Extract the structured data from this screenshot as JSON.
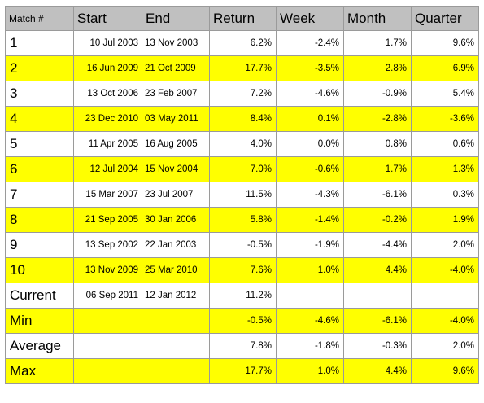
{
  "headers": [
    "Match #",
    "Start",
    "End",
    "Return",
    "Week",
    "Month",
    "Quarter"
  ],
  "rows": [
    {
      "label": "1",
      "start": "10 Jul 2003",
      "end": "13 Nov 2003",
      "ret": "6.2%",
      "week": "-2.4%",
      "month": "1.7%",
      "quarter": "9.6%",
      "highlight": false
    },
    {
      "label": "2",
      "start": "16 Jun 2009",
      "end": "21 Oct 2009",
      "ret": "17.7%",
      "week": "-3.5%",
      "month": "2.8%",
      "quarter": "6.9%",
      "highlight": true
    },
    {
      "label": "3",
      "start": "13 Oct 2006",
      "end": "23 Feb 2007",
      "ret": "7.2%",
      "week": "-4.6%",
      "month": "-0.9%",
      "quarter": "5.4%",
      "highlight": false
    },
    {
      "label": "4",
      "start": "23 Dec 2010",
      "end": "03 May 2011",
      "ret": "8.4%",
      "week": "0.1%",
      "month": "-2.8%",
      "quarter": "-3.6%",
      "highlight": true
    },
    {
      "label": "5",
      "start": "11 Apr 2005",
      "end": "16 Aug 2005",
      "ret": "4.0%",
      "week": "0.0%",
      "month": "0.8%",
      "quarter": "0.6%",
      "highlight": false
    },
    {
      "label": "6",
      "start": "12 Jul 2004",
      "end": "15 Nov 2004",
      "ret": "7.0%",
      "week": "-0.6%",
      "month": "1.7%",
      "quarter": "1.3%",
      "highlight": true
    },
    {
      "label": "7",
      "start": "15 Mar 2007",
      "end": "23 Jul 2007",
      "ret": "11.5%",
      "week": "-4.3%",
      "month": "-6.1%",
      "quarter": "0.3%",
      "highlight": false
    },
    {
      "label": "8",
      "start": "21 Sep 2005",
      "end": "30 Jan 2006",
      "ret": "5.8%",
      "week": "-1.4%",
      "month": "-0.2%",
      "quarter": "1.9%",
      "highlight": true
    },
    {
      "label": "9",
      "start": "13 Sep 2002",
      "end": "22 Jan 2003",
      "ret": "-0.5%",
      "week": "-1.9%",
      "month": "-4.4%",
      "quarter": "2.0%",
      "highlight": false
    },
    {
      "label": "10",
      "start": "13 Nov 2009",
      "end": "25 Mar 2010",
      "ret": "7.6%",
      "week": "1.0%",
      "month": "4.4%",
      "quarter": "-4.0%",
      "highlight": true
    },
    {
      "label": "Current",
      "start": "06 Sep 2011",
      "end": "12 Jan 2012",
      "ret": "11.2%",
      "week": "",
      "month": "",
      "quarter": "",
      "highlight": false
    },
    {
      "label": "Min",
      "start": "",
      "end": "",
      "ret": "-0.5%",
      "week": "-4.6%",
      "month": "-6.1%",
      "quarter": "-4.0%",
      "highlight": true
    },
    {
      "label": "Average",
      "start": "",
      "end": "",
      "ret": "7.8%",
      "week": "-1.8%",
      "month": "-0.3%",
      "quarter": "2.0%",
      "highlight": false
    },
    {
      "label": "Max",
      "start": "",
      "end": "",
      "ret": "17.7%",
      "week": "1.0%",
      "month": "4.4%",
      "quarter": "9.6%",
      "highlight": true
    }
  ],
  "colors": {
    "highlight": "#ffff00",
    "header": "#c0c0c0",
    "border": "#9a9a9a"
  }
}
